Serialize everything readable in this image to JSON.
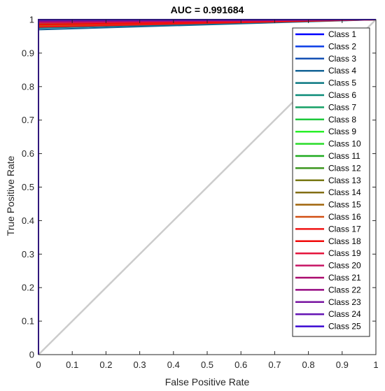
{
  "chart_data": {
    "type": "line",
    "title": "AUC = 0.991684",
    "xlabel": "False Positive Rate",
    "ylabel": "True Positive Rate",
    "xlim": [
      0,
      1
    ],
    "ylim": [
      0,
      1
    ],
    "xticks": [
      "0",
      "0.1",
      "0.2",
      "0.3",
      "0.4",
      "0.5",
      "0.6",
      "0.7",
      "0.8",
      "0.9",
      "1"
    ],
    "yticks": [
      "0",
      "0.1",
      "0.2",
      "0.3",
      "0.4",
      "0.5",
      "0.6",
      "0.7",
      "0.8",
      "0.9",
      "1"
    ],
    "grid": false,
    "legend_position": "right",
    "reference_line": {
      "x": [
        0,
        1
      ],
      "y": [
        0,
        1
      ],
      "color": "#cccccc"
    },
    "series": [
      {
        "name": "Class 1",
        "color": "#0000ff",
        "x": [
          0,
          0,
          1
        ],
        "y": [
          0,
          0.995,
          1
        ]
      },
      {
        "name": "Class 2",
        "color": "#0a3ce6",
        "x": [
          0,
          0,
          1
        ],
        "y": [
          0,
          0.99,
          1
        ]
      },
      {
        "name": "Class 3",
        "color": "#1450b4",
        "x": [
          0,
          0,
          1
        ],
        "y": [
          0,
          0.985,
          1
        ]
      },
      {
        "name": "Class 4",
        "color": "#146496",
        "x": [
          0,
          0,
          1
        ],
        "y": [
          0,
          0.97,
          1
        ]
      },
      {
        "name": "Class 5",
        "color": "#0a7882",
        "x": [
          0,
          0,
          1
        ],
        "y": [
          0,
          0.975,
          1
        ]
      },
      {
        "name": "Class 6",
        "color": "#0a8c78",
        "x": [
          0,
          0,
          1
        ],
        "y": [
          0,
          0.98,
          1
        ]
      },
      {
        "name": "Class 7",
        "color": "#14a064",
        "x": [
          0,
          0,
          1
        ],
        "y": [
          0,
          0.985,
          1
        ]
      },
      {
        "name": "Class 8",
        "color": "#1ec83c",
        "x": [
          0,
          0,
          1
        ],
        "y": [
          0,
          0.99,
          1
        ]
      },
      {
        "name": "Class 9",
        "color": "#28f028",
        "x": [
          0,
          0,
          1
        ],
        "y": [
          0,
          0.992,
          1
        ]
      },
      {
        "name": "Class 10",
        "color": "#28dc28",
        "x": [
          0,
          0,
          1
        ],
        "y": [
          0,
          0.994,
          1
        ]
      },
      {
        "name": "Class 11",
        "color": "#1eaa1e",
        "x": [
          0,
          0,
          1
        ],
        "y": [
          0,
          0.99,
          1
        ]
      },
      {
        "name": "Class 12",
        "color": "#3c961e",
        "x": [
          0,
          0,
          1
        ],
        "y": [
          0,
          0.988,
          1
        ]
      },
      {
        "name": "Class 13",
        "color": "#787814",
        "x": [
          0,
          0,
          1
        ],
        "y": [
          0,
          0.986,
          1
        ]
      },
      {
        "name": "Class 14",
        "color": "#826e14",
        "x": [
          0,
          0,
          1
        ],
        "y": [
          0,
          0.984,
          1
        ]
      },
      {
        "name": "Class 15",
        "color": "#a0640a",
        "x": [
          0,
          0,
          1
        ],
        "y": [
          0,
          0.982,
          1
        ]
      },
      {
        "name": "Class 16",
        "color": "#d25014",
        "x": [
          0,
          0,
          1
        ],
        "y": [
          0,
          0.98,
          1
        ]
      },
      {
        "name": "Class 17",
        "color": "#f01414",
        "x": [
          0,
          0,
          1
        ],
        "y": [
          0,
          0.978,
          1
        ]
      },
      {
        "name": "Class 18",
        "color": "#f00a0a",
        "x": [
          0,
          0,
          1
        ],
        "y": [
          0,
          0.985,
          1
        ]
      },
      {
        "name": "Class 19",
        "color": "#e6143c",
        "x": [
          0,
          0,
          1
        ],
        "y": [
          0,
          0.99,
          1
        ]
      },
      {
        "name": "Class 20",
        "color": "#c81464",
        "x": [
          0,
          0,
          1
        ],
        "y": [
          0,
          0.992,
          1
        ]
      },
      {
        "name": "Class 21",
        "color": "#aa0a6e",
        "x": [
          0,
          0,
          1
        ],
        "y": [
          0,
          0.994,
          1
        ]
      },
      {
        "name": "Class 22",
        "color": "#960a82",
        "x": [
          0,
          0,
          1
        ],
        "y": [
          0,
          0.996,
          1
        ]
      },
      {
        "name": "Class 23",
        "color": "#7814a0",
        "x": [
          0,
          0,
          1
        ],
        "y": [
          0,
          0.997,
          1
        ]
      },
      {
        "name": "Class 24",
        "color": "#6414b4",
        "x": [
          0,
          0,
          1
        ],
        "y": [
          0,
          0.998,
          1
        ]
      },
      {
        "name": "Class 25",
        "color": "#3c0ad2",
        "x": [
          0,
          0,
          1
        ],
        "y": [
          0,
          1.0,
          1
        ]
      }
    ]
  }
}
